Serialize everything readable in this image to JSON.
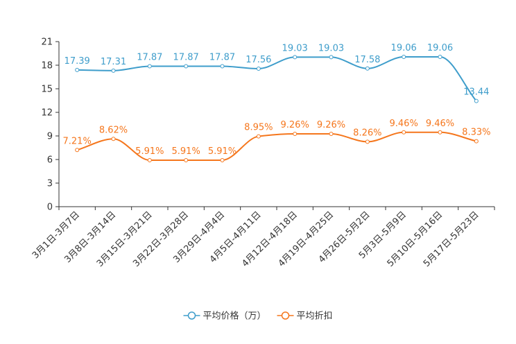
{
  "chart_data": {
    "type": "line",
    "categories": [
      "3月1日-3月7日",
      "3月8日-3月14日",
      "3月15日-3月21日",
      "3月22日-3月28日",
      "3月29日-4月4日",
      "4月5日-4月11日",
      "4月12日-4月18日",
      "4月19日-4月25日",
      "4月26日-5月2日",
      "5月3日-5月9日",
      "5月10日-5月16日",
      "5月17日-5月23日"
    ],
    "ylim": [
      0,
      21
    ],
    "yticks": [
      0,
      3,
      6,
      9,
      12,
      15,
      18,
      21
    ],
    "series": [
      {
        "name": "平均价格（万）",
        "color": "#3e9dcb",
        "values": [
          17.39,
          17.31,
          17.87,
          17.87,
          17.87,
          17.56,
          19.03,
          19.03,
          17.58,
          19.06,
          19.06,
          13.44
        ],
        "labels": [
          "17.39",
          "17.31",
          "17.87",
          "17.87",
          "17.87",
          "17.56",
          "19.03",
          "19.03",
          "17.58",
          "19.06",
          "19.06",
          "13.44"
        ]
      },
      {
        "name": "平均折扣",
        "color": "#f5761c",
        "values": [
          7.21,
          8.62,
          5.91,
          5.91,
          5.91,
          8.95,
          9.26,
          9.26,
          8.26,
          9.46,
          9.46,
          8.33
        ],
        "labels": [
          "7.21%",
          "8.62%",
          "5.91%",
          "5.91%",
          "5.91%",
          "8.95%",
          "9.26%",
          "9.26%",
          "8.26%",
          "9.46%",
          "9.46%",
          "8.33%"
        ]
      }
    ],
    "legend_position": "bottom-center"
  }
}
